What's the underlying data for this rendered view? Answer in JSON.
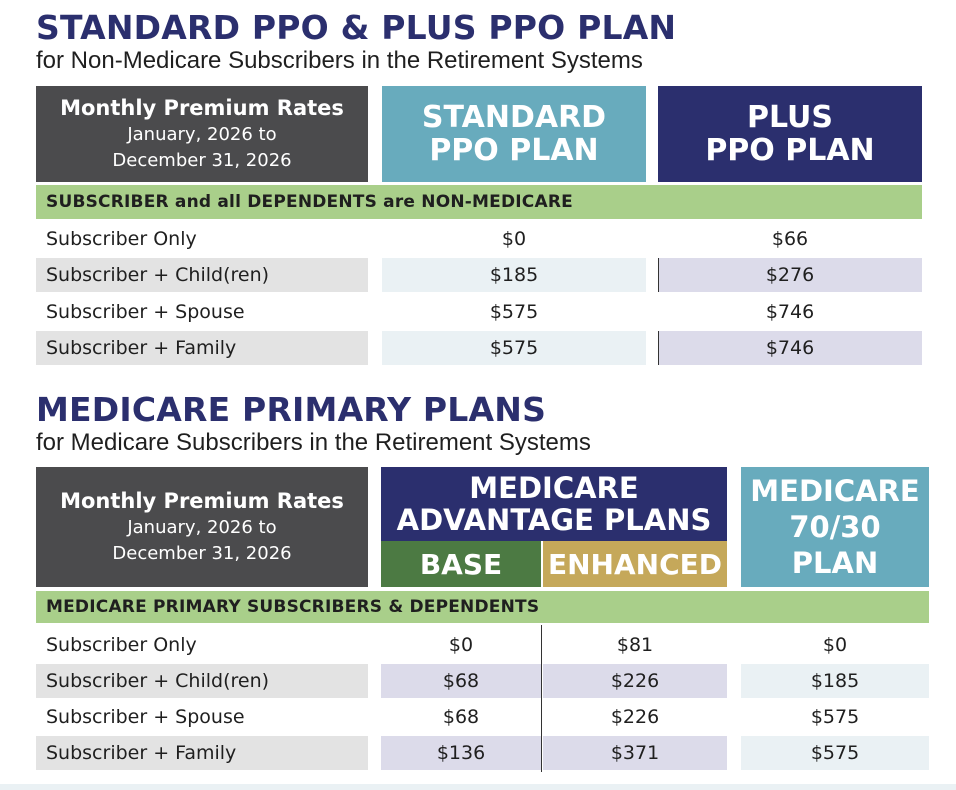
{
  "section1": {
    "title": "STANDARD PPO & PLUS PPO PLAN",
    "subtitle": "for Non-Medicare Subscribers in the Retirement Systems",
    "header": {
      "rates_title": "Monthly Premium Rates",
      "rates_line2": "January, 2026 to",
      "rates_line3": "December 31, 2026",
      "plan1_line1": "STANDARD",
      "plan1_line2": "PPO PLAN",
      "plan2_line1": "PLUS",
      "plan2_line2": "PPO PLAN"
    },
    "band": "SUBSCRIBER and all DEPENDENTS are NON-MEDICARE",
    "rows": [
      {
        "label": "Subscriber Only",
        "standard": "$0",
        "plus": "$66"
      },
      {
        "label": "Subscriber + Child(ren)",
        "standard": "$185",
        "plus": "$276"
      },
      {
        "label": "Subscriber + Spouse",
        "standard": "$575",
        "plus": "$746"
      },
      {
        "label": "Subscriber + Family",
        "standard": "$575",
        "plus": "$746"
      }
    ]
  },
  "section2": {
    "title": "MEDICARE PRIMARY PLANS",
    "subtitle": "for Medicare Subscribers in the Retirement Systems",
    "header": {
      "rates_title": "Monthly Premium Rates",
      "rates_line2": "January, 2026 to",
      "rates_line3": "December 31, 2026",
      "advantage_line1": "MEDICARE",
      "advantage_line2": "ADVANTAGE PLANS",
      "base": "BASE",
      "enhanced": "ENHANCED",
      "m7030_line1": "MEDICARE",
      "m7030_line2": "70/30",
      "m7030_line3": "PLAN"
    },
    "band": "MEDICARE PRIMARY SUBSCRIBERS & DEPENDENTS",
    "rows": [
      {
        "label": "Subscriber Only",
        "base": "$0",
        "enhanced": "$81",
        "m7030": "$0"
      },
      {
        "label": "Subscriber + Child(ren)",
        "base": "$68",
        "enhanced": "$226",
        "m7030": "$185"
      },
      {
        "label": "Subscriber + Spouse",
        "base": "$68",
        "enhanced": "$226",
        "m7030": "$575"
      },
      {
        "label": "Subscriber + Family",
        "base": "$136",
        "enhanced": "$371",
        "m7030": "$575"
      }
    ]
  },
  "colors": {
    "title": "#2b2f6e",
    "header_dark": "#4b4b4d",
    "teal": "#68abbd",
    "navy": "#2b2f6e",
    "band_green": "#a9cf8a",
    "base_green": "#4c7a43",
    "enhanced_gold": "#c5a85a"
  }
}
